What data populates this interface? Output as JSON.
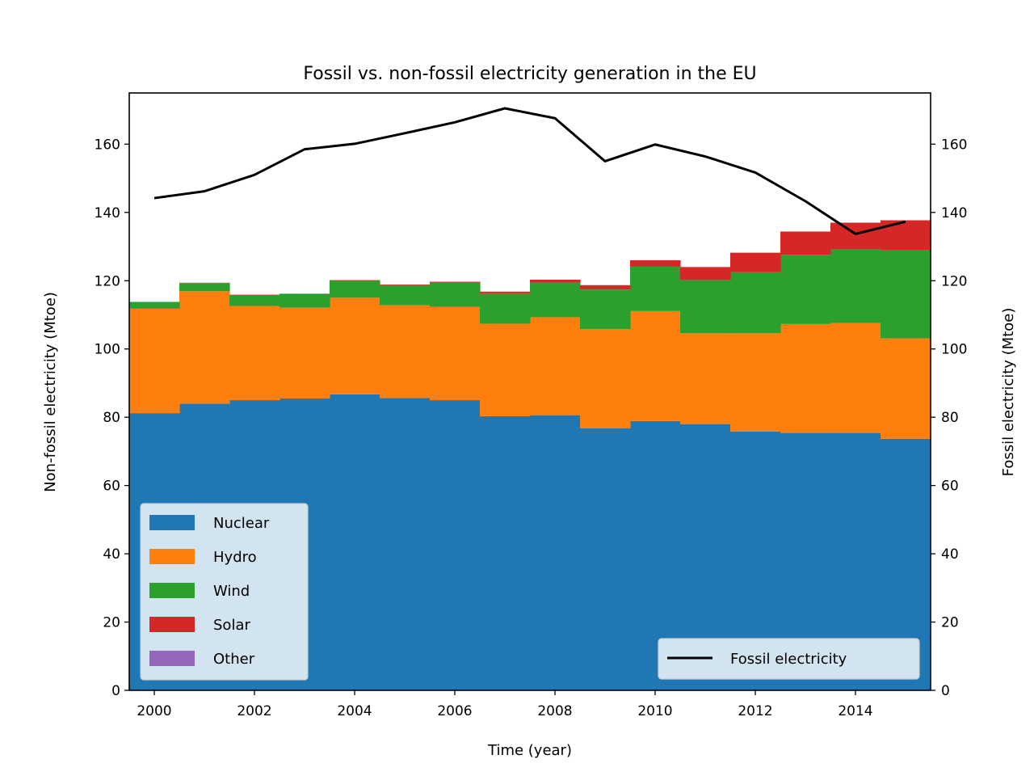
{
  "chart_data": {
    "type": "area",
    "title": "Fossil vs. non-fossil electricity generation in the EU",
    "xlabel": "Time (year)",
    "ylabel": "Non-fossil electricity (Mtoe)",
    "ylabel_right": "Fossil electricity (Mtoe)",
    "xlim": [
      1999.5,
      2015.5
    ],
    "ylim": [
      0,
      175
    ],
    "ylim_right": [
      0,
      175
    ],
    "x_ticks": [
      2000,
      2002,
      2004,
      2006,
      2008,
      2010,
      2012,
      2014
    ],
    "y_ticks": [
      0,
      20,
      40,
      60,
      80,
      100,
      120,
      140,
      160
    ],
    "x": [
      2000,
      2001,
      2002,
      2003,
      2004,
      2005,
      2006,
      2007,
      2008,
      2009,
      2010,
      2011,
      2012,
      2013,
      2014,
      2015
    ],
    "step": "mid",
    "grid": false,
    "series": [
      {
        "name": "Nuclear",
        "color": "#1f77b4",
        "values": [
          81.2,
          84.0,
          85.0,
          85.5,
          86.7,
          85.6,
          85.0,
          80.3,
          80.6,
          76.8,
          78.9,
          78.0,
          75.8,
          75.4,
          75.4,
          73.7
        ]
      },
      {
        "name": "Hydro",
        "color": "#ff7f0e",
        "values": [
          30.6,
          32.9,
          27.6,
          26.6,
          28.3,
          27.2,
          27.3,
          27.1,
          28.7,
          29.0,
          32.2,
          26.6,
          28.8,
          31.9,
          32.2,
          29.4
        ]
      },
      {
        "name": "Wind",
        "color": "#2ca02c",
        "values": [
          1.9,
          2.4,
          3.2,
          4.0,
          5.1,
          5.9,
          7.1,
          8.9,
          10.1,
          11.6,
          13.0,
          15.6,
          17.9,
          20.3,
          21.6,
          25.8
        ]
      },
      {
        "name": "Solar",
        "color": "#d62728",
        "values": [
          0.1,
          0.1,
          0.1,
          0.1,
          0.1,
          0.2,
          0.3,
          0.5,
          0.9,
          1.3,
          1.9,
          3.8,
          5.7,
          6.8,
          7.8,
          8.8
        ]
      },
      {
        "name": "Other",
        "color": "#9467bd",
        "values": [
          0,
          0,
          0,
          0,
          0,
          0,
          0,
          0,
          0,
          0,
          0,
          0,
          0,
          0,
          0,
          0
        ]
      }
    ],
    "line_series": {
      "name": "Fossil electricity",
      "color": "#000000",
      "axis": "right",
      "values": [
        144.2,
        146.2,
        151.0,
        158.5,
        160.1,
        163.2,
        166.4,
        170.5,
        167.6,
        155.0,
        159.9,
        156.4,
        151.7,
        143.3,
        133.7,
        137.3
      ]
    },
    "legend": {
      "stack_position": "lower-left",
      "line_position": "lower-right"
    }
  }
}
